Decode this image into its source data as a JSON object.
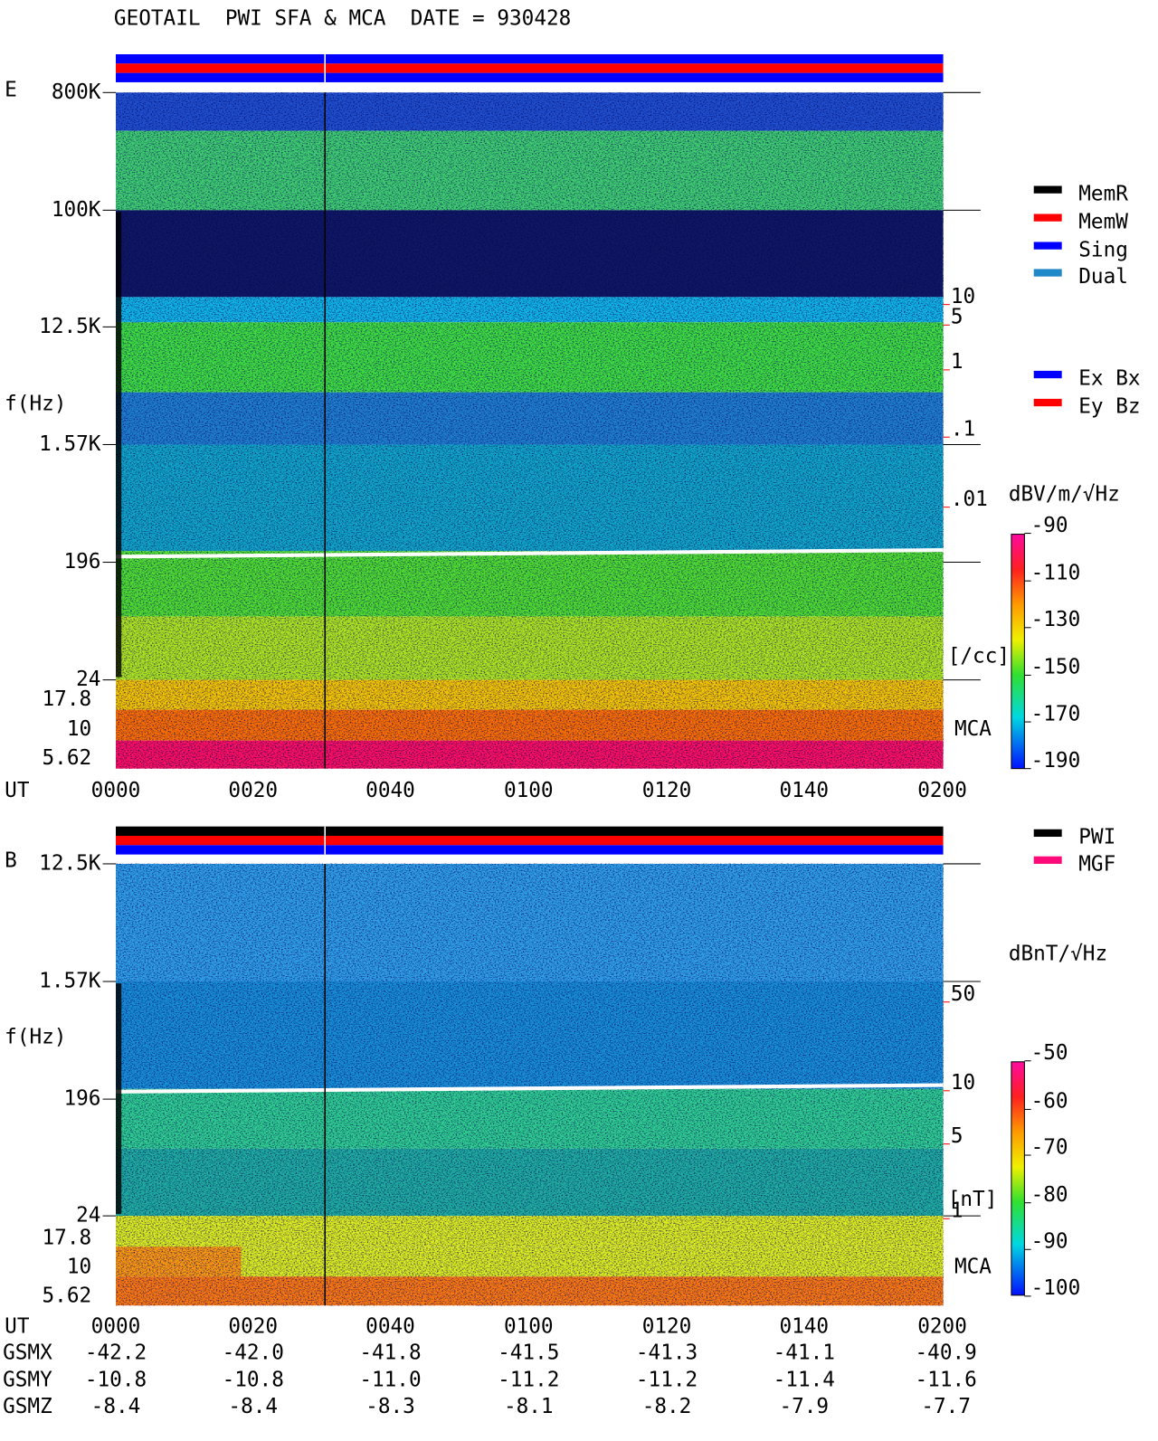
{
  "header": {
    "title": "GEOTAIL  PWI SFA & MCA  DATE = 930428"
  },
  "time_axis": {
    "label": "UT",
    "ticks": [
      "0000",
      "0020",
      "0040",
      "0100",
      "0120",
      "0140",
      "0200"
    ]
  },
  "panels": [
    {
      "label": "E",
      "axis_label": "f(Hz)",
      "freq_ticks": [
        "800K",
        "100K",
        "12.5K",
        "1.57K",
        "196",
        "24"
      ],
      "mca_ticks": [
        "17.8",
        "10",
        "5.62"
      ],
      "right_ticks": [
        "10",
        "5",
        "1",
        ".1",
        ".01"
      ],
      "right_unit": "[/cc]",
      "mca_label": "MCA",
      "legend": [
        {
          "name": "MemR",
          "color": "#000000"
        },
        {
          "name": "MemW",
          "color": "#ff0000"
        },
        {
          "name": "Sing",
          "color": "#0000ff"
        },
        {
          "name": "Dual",
          "color": "#1e88c8"
        },
        {
          "name": "Ex Bx",
          "color": "#0000ff"
        },
        {
          "name": "Ey Bz",
          "color": "#ff0000"
        }
      ],
      "colorbar": {
        "label": "dBV/m/√Hz",
        "ticks": [
          "-90",
          "-110",
          "-130",
          "-150",
          "-170",
          "-190"
        ]
      }
    },
    {
      "label": "B",
      "axis_label": "f(Hz)",
      "freq_ticks": [
        "12.5K",
        "1.57K",
        "196",
        "24"
      ],
      "mca_ticks": [
        "17.8",
        "10",
        "5.62"
      ],
      "right_ticks": [
        "50",
        "10",
        "5",
        "1"
      ],
      "right_unit": "[nT]",
      "mca_label": "MCA",
      "legend": [
        {
          "name": "PWI",
          "color": "#000000"
        },
        {
          "name": "MGF",
          "color": "#ff0a78"
        }
      ],
      "colorbar": {
        "label": "dBnT/√Hz",
        "ticks": [
          "-50",
          "-60",
          "-70",
          "-80",
          "-90",
          "-100"
        ]
      }
    }
  ],
  "orbit": [
    {
      "label": "GSMX",
      "values": [
        "-42.2",
        "-42.0",
        "-41.8",
        "-41.5",
        "-41.3",
        "-41.1",
        "-40.9"
      ]
    },
    {
      "label": "GSMY",
      "values": [
        "-10.8",
        "-10.8",
        "-11.0",
        "-11.2",
        "-11.2",
        "-11.4",
        "-11.6"
      ]
    },
    {
      "label": "GSMZ",
      "values": [
        "-8.4",
        "-8.4",
        "-8.3",
        "-8.1",
        "-8.2",
        "-7.9",
        "-7.7"
      ]
    }
  ]
}
